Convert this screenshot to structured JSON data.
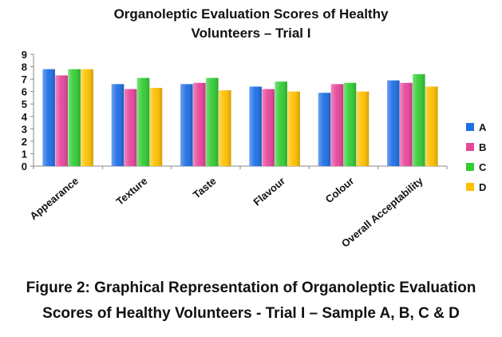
{
  "chart_data": {
    "type": "bar",
    "title": "Organoleptic Evaluation Scores of Healthy\nVolunteers – Trial I",
    "xlabel": "",
    "ylabel": "",
    "ylim": [
      0,
      9
    ],
    "yticks": [
      0,
      1,
      2,
      3,
      4,
      5,
      6,
      7,
      8,
      9
    ],
    "grid": false,
    "legend_position": "right",
    "categories": [
      "Appearance",
      "Texture",
      "Taste",
      "Flavour",
      "Colour",
      "Overall Acceptability"
    ],
    "series": [
      {
        "name": "A",
        "color": "#1f6fe5",
        "values": [
          7.8,
          6.6,
          6.6,
          6.4,
          5.9,
          6.9
        ]
      },
      {
        "name": "B",
        "color": "#e8459b",
        "values": [
          7.3,
          6.2,
          6.7,
          6.2,
          6.6,
          6.7
        ]
      },
      {
        "name": "C",
        "color": "#33cc33",
        "values": [
          7.8,
          7.1,
          7.1,
          6.8,
          6.7,
          7.4
        ]
      },
      {
        "name": "D",
        "color": "#ffc000",
        "values": [
          7.8,
          6.3,
          6.1,
          6.0,
          6.0,
          6.4
        ]
      }
    ]
  },
  "caption": "Figure 2: Graphical Representation of Organoleptic Evaluation\nScores of Healthy Volunteers - Trial I – Sample A, B, C & D"
}
